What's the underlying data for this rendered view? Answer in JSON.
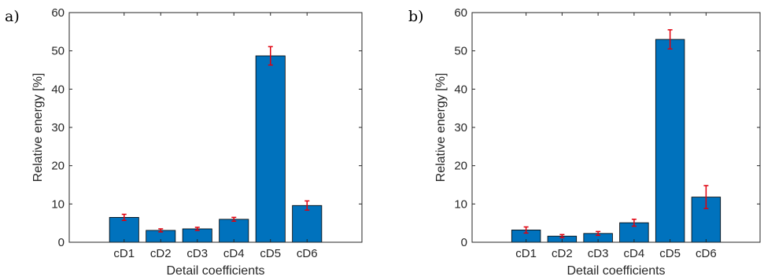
{
  "chart_data": [
    {
      "type": "bar",
      "panel_label": "a)",
      "categories": [
        "cD1",
        "cD2",
        "cD3",
        "cD4",
        "cD5",
        "cD6"
      ],
      "values": [
        6.5,
        3.1,
        3.5,
        6.0,
        48.7,
        9.6
      ],
      "errors": [
        0.8,
        0.4,
        0.4,
        0.5,
        2.4,
        1.2
      ],
      "title": "",
      "xlabel": "Detail coefficients",
      "ylabel": "Relative energy [%]",
      "ylim": [
        0,
        60
      ],
      "yticks": [
        "0",
        "10",
        "20",
        "30",
        "40",
        "50",
        "60"
      ],
      "grid": false,
      "bar_color": "#0072BD",
      "error_color": "#E0000D"
    },
    {
      "type": "bar",
      "panel_label": "b)",
      "categories": [
        "cD1",
        "cD2",
        "cD3",
        "cD4",
        "cD5",
        "cD6"
      ],
      "values": [
        3.2,
        1.6,
        2.3,
        5.1,
        53.0,
        11.8
      ],
      "errors": [
        0.8,
        0.4,
        0.5,
        0.9,
        2.5,
        3.0
      ],
      "title": "",
      "xlabel": "Detail coefficients",
      "ylabel": "Relative energy [%]",
      "ylim": [
        0,
        60
      ],
      "yticks": [
        "0",
        "10",
        "20",
        "30",
        "40",
        "50",
        "60"
      ],
      "grid": false,
      "bar_color": "#0072BD",
      "error_color": "#E0000D"
    }
  ]
}
